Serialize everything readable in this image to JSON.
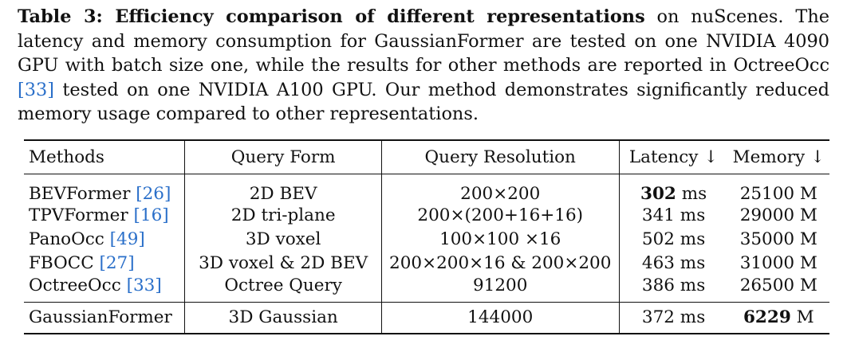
{
  "caption": {
    "label": "Table 3: Efficiency comparison of different representations",
    "text_1": " on nuScenes. The latency and memory consumption for GaussianFormer are tested on one NVIDIA 4090 GPU with batch size one, while the results for other methods are reported in OctreeOcc ",
    "cite": "[33]",
    "text_2": " tested on one NVIDIA A100 GPU. Our method demonstrates significantly reduced memory usage compared to other representations."
  },
  "table": {
    "headers": [
      "Methods",
      "Query Form",
      "Query Resolution",
      "Latency ↓",
      "Memory ↓"
    ],
    "rows": [
      {
        "method": "BEVFormer ",
        "cite": "[26]",
        "form": "2D BEV",
        "resolution": "200×200",
        "latency_value": "302",
        "latency_unit": " ms",
        "memory_value": "25100",
        "memory_unit": " M"
      },
      {
        "method": "TPVFormer ",
        "cite": "[16]",
        "form": "2D tri-plane",
        "resolution": "200×(200+16+16)",
        "latency_value": "341",
        "latency_unit": " ms",
        "memory_value": "29000",
        "memory_unit": " M"
      },
      {
        "method": "PanoOcc ",
        "cite": "[49]",
        "form": "3D voxel",
        "resolution": "100×100 ×16",
        "latency_value": "502",
        "latency_unit": " ms",
        "memory_value": "35000",
        "memory_unit": " M"
      },
      {
        "method": "FBOCC ",
        "cite": "[27]",
        "form": "3D voxel & 2D BEV",
        "resolution": "200×200×16 & 200×200",
        "latency_value": "463",
        "latency_unit": " ms",
        "memory_value": "31000",
        "memory_unit": " M"
      },
      {
        "method": "OctreeOcc ",
        "cite": "[33]",
        "form": "Octree Query",
        "resolution": "91200",
        "latency_value": "386",
        "latency_unit": " ms",
        "memory_value": "26500",
        "memory_unit": " M"
      }
    ],
    "ours": {
      "method": "GaussianFormer",
      "form": "3D Gaussian",
      "resolution": "144000",
      "latency_value": "372",
      "latency_unit": " ms",
      "memory_value": "6229",
      "memory_unit": " M"
    }
  }
}
